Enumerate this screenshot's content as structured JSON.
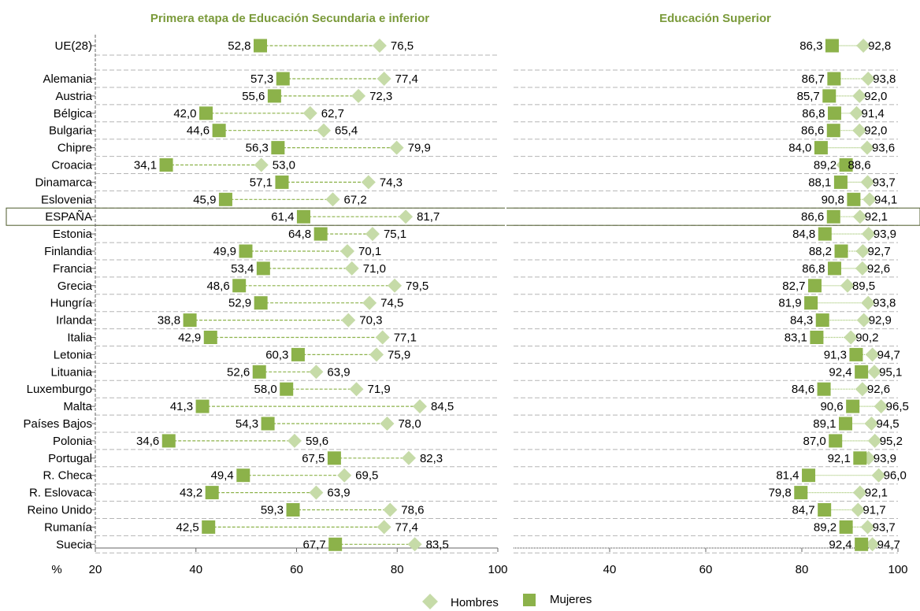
{
  "chart_data": {
    "type": "dumbbell",
    "axis_unit_label": "%",
    "colors": {
      "hombres": "#c6dba8",
      "mujeres": "#8cb24a",
      "title": "#7a9a3a",
      "highlight_border": "#4d5a2b"
    },
    "legend": [
      {
        "key": "hombres",
        "label": "Hombres",
        "marker": "diamond"
      },
      {
        "key": "mujeres",
        "label": "Mujeres",
        "marker": "square"
      }
    ],
    "highlight_category": "ESPAÑA",
    "categories": [
      "UE(28)",
      "Alemania",
      "Austria",
      "Bélgica",
      "Bulgaria",
      "Chipre",
      "Croacia",
      "Dinamarca",
      "Eslovenia",
      "ESPAÑA",
      "Estonia",
      "Finlandia",
      "Francia",
      "Grecia",
      "Hungría",
      "Irlanda",
      "Italia",
      "Letonia",
      "Lituania",
      "Luxemburgo",
      "Malta",
      "Países Bajos",
      "Polonia",
      "Portugal",
      "R. Checa",
      "R. Eslovaca",
      "Reino Unido",
      "Rumanía",
      "Suecia"
    ],
    "panels": [
      {
        "title": "Primera etapa de Educación Secundaria e inferior",
        "xlim": [
          20,
          100
        ],
        "ticks": [
          20,
          40,
          60,
          80,
          100
        ],
        "tick_labels": [
          "20",
          "40",
          "60",
          "80",
          "100"
        ],
        "mujeres": [
          52.8,
          57.3,
          55.6,
          42.0,
          44.6,
          56.3,
          34.1,
          57.1,
          45.9,
          61.4,
          64.8,
          49.9,
          53.4,
          48.6,
          52.9,
          38.8,
          42.9,
          60.3,
          52.6,
          58.0,
          41.3,
          54.3,
          34.6,
          67.5,
          49.4,
          43.2,
          59.3,
          42.5,
          67.7
        ],
        "hombres": [
          76.5,
          77.4,
          72.3,
          62.7,
          65.4,
          79.9,
          53.0,
          74.3,
          67.2,
          81.7,
          75.1,
          70.1,
          71.0,
          79.5,
          74.5,
          70.3,
          77.1,
          75.9,
          63.9,
          71.9,
          84.5,
          78.0,
          59.6,
          82.3,
          69.5,
          63.9,
          78.6,
          77.4,
          83.5
        ],
        "mujeres_labels": [
          "52,8",
          "57,3",
          "55,6",
          "42,0",
          "44,6",
          "56,3",
          "34,1",
          "57,1",
          "45,9",
          "61,4",
          "64,8",
          "49,9",
          "53,4",
          "48,6",
          "52,9",
          "38,8",
          "42,9",
          "60,3",
          "52,6",
          "58,0",
          "41,3",
          "54,3",
          "34,6",
          "67,5",
          "49,4",
          "43,2",
          "59,3",
          "42,5",
          "67,7"
        ],
        "hombres_labels": [
          "76,5",
          "77,4",
          "72,3",
          "62,7",
          "65,4",
          "79,9",
          "53,0",
          "74,3",
          "67,2",
          "81,7",
          "75,1",
          "70,1",
          "71,0",
          "79,5",
          "74,5",
          "70,3",
          "77,1",
          "75,9",
          "63,9",
          "71,9",
          "84,5",
          "78,0",
          "59,6",
          "82,3",
          "69,5",
          "63,9",
          "78,6",
          "77,4",
          "83,5"
        ]
      },
      {
        "title": "Educación Superior",
        "xlim": [
          20,
          100
        ],
        "ticks": [
          40,
          60,
          80,
          100
        ],
        "tick_labels": [
          "40",
          "60",
          "80",
          "100"
        ],
        "mujeres": [
          86.3,
          86.7,
          85.7,
          86.8,
          86.6,
          84.0,
          89.2,
          88.1,
          90.8,
          86.6,
          84.8,
          88.2,
          86.8,
          82.7,
          81.9,
          84.3,
          83.1,
          91.3,
          92.4,
          84.6,
          90.6,
          89.1,
          87.0,
          92.1,
          81.4,
          79.8,
          84.7,
          89.2,
          92.4
        ],
        "hombres": [
          92.8,
          93.8,
          92.0,
          91.4,
          92.0,
          93.6,
          88.6,
          93.7,
          94.1,
          92.1,
          93.9,
          92.7,
          92.6,
          89.5,
          93.8,
          92.9,
          90.2,
          94.7,
          95.1,
          92.6,
          96.5,
          94.5,
          95.2,
          93.9,
          96.0,
          92.1,
          91.7,
          93.7,
          94.7
        ],
        "mujeres_labels": [
          "86,3",
          "86,7",
          "85,7",
          "86,8",
          "86,6",
          "84,0",
          "89,2",
          "88,1",
          "90,8",
          "86,6",
          "84,8",
          "88,2",
          "86,8",
          "82,7",
          "81,9",
          "84,3",
          "83,1",
          "91,3",
          "92,4",
          "84,6",
          "90,6",
          "89,1",
          "87,0",
          "92,1",
          "81,4",
          "79,8",
          "84,7",
          "89,2",
          "92,4"
        ],
        "hombres_labels": [
          "92,8",
          "93,8",
          "92,0",
          "91,4",
          "92,0",
          "93,6",
          "88,6",
          "93,7",
          "94,1",
          "92,1",
          "93,9",
          "92,7",
          "92,6",
          "89,5",
          "93,8",
          "92,9",
          "90,2",
          "94,7",
          "95,1",
          "92,6",
          "96,5",
          "94,5",
          "95,2",
          "93,9",
          "96,0",
          "92,1",
          "91,7",
          "93,7",
          "94,7"
        ]
      }
    ]
  }
}
